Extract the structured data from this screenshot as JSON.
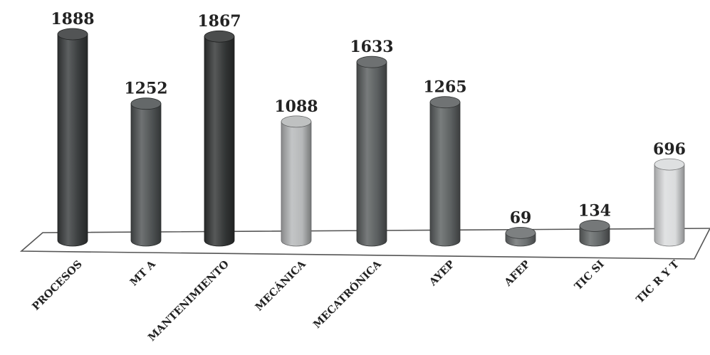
{
  "chart_data": {
    "type": "bar",
    "style": "3d-cylinder",
    "title": "",
    "xlabel": "",
    "ylabel": "",
    "categories": [
      "PROCESOS",
      "MT A",
      "MANTENIMIENTO",
      "MECÁNICA",
      "MECATRÓNICA",
      "AYEP",
      "AFEP",
      "TIC SI",
      "TIC R Y T"
    ],
    "values": [
      1888,
      1252,
      1867,
      1088,
      1633,
      1265,
      69,
      134,
      696
    ],
    "value_labels": [
      "1888",
      "1252",
      "1867",
      "1088",
      "1633",
      "1265",
      "69",
      "134",
      "696"
    ],
    "ylim": [
      0,
      1888
    ],
    "grid": false,
    "legend": "none",
    "bar_colors": [
      "#3a3d3e",
      "#4f5354",
      "#323535",
      "#b6b8b9",
      "#5a5e5f",
      "#5c6061",
      "#6b6f70",
      "#626667",
      "#dadcdd"
    ]
  }
}
